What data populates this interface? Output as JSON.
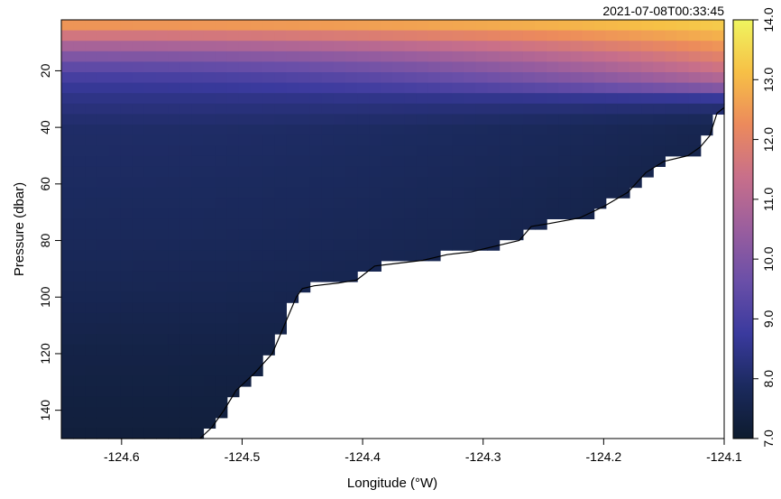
{
  "chart_data": {
    "type": "heatmap",
    "timestamp": "2021-07-08T00:33:45",
    "xlabel": "Longitude (°W)",
    "ylabel": "Pressure (dbar)",
    "xlim": [
      -124.65,
      -124.1
    ],
    "ylim": [
      150,
      2
    ],
    "xticks": [
      -124.6,
      -124.5,
      -124.4,
      -124.3,
      -124.2,
      -124.1
    ],
    "xtick_labels": [
      "-124.6",
      "-124.5",
      "-124.4",
      "-124.3",
      "-124.2",
      "-124.1"
    ],
    "yticks": [
      20,
      40,
      60,
      80,
      100,
      120,
      140
    ],
    "ytick_labels": [
      "20",
      "40",
      "60",
      "80",
      "100",
      "120",
      "140"
    ],
    "colorbar": {
      "range": [
        7.0,
        14.0
      ],
      "ticks": [
        7.0,
        8.0,
        9.0,
        10.0,
        11.0,
        12.0,
        13.0,
        14.0
      ],
      "tick_labels": [
        "7.0",
        "8.0",
        "9.0",
        "10.0",
        "11.0",
        "12.0",
        "13.0",
        "14.0"
      ],
      "colors": [
        "#0d1b2e",
        "#1b2a5e",
        "#3a3a9e",
        "#6a4fa8",
        "#9a5e9e",
        "#c86f8a",
        "#ec8a5c",
        "#f7c046",
        "#eff55f"
      ]
    },
    "bottom_profile": {
      "lon": [
        -124.535,
        -124.525,
        -124.515,
        -124.505,
        -124.49,
        -124.475,
        -124.465,
        -124.455,
        -124.45,
        -124.44,
        -124.42,
        -124.405,
        -124.39,
        -124.37,
        -124.35,
        -124.33,
        -124.31,
        -124.29,
        -124.27,
        -124.26,
        -124.245,
        -124.22,
        -124.2,
        -124.18,
        -124.165,
        -124.15,
        -124.13,
        -124.12,
        -124.112,
        -124.106,
        -124.1
      ],
      "depth": [
        150,
        146,
        140,
        133,
        127,
        120,
        110,
        100,
        97,
        96,
        95,
        94,
        89,
        88,
        87,
        85,
        84,
        82,
        80,
        75,
        74,
        72,
        68,
        63,
        56,
        52,
        50,
        47,
        43,
        35,
        33
      ]
    },
    "temperature_profiles": {
      "offshore": {
        "pressure": [
          2,
          5,
          10,
          15,
          20,
          25,
          30,
          35,
          40,
          60,
          80,
          100,
          120,
          150
        ],
        "value": [
          12.8,
          12.2,
          11.0,
          10.0,
          9.2,
          8.7,
          8.4,
          8.2,
          8.0,
          7.9,
          7.8,
          7.65,
          7.45,
          7.25
        ]
      },
      "nearshore": {
        "pressure": [
          2,
          5,
          10,
          15,
          20,
          25,
          30,
          35,
          40,
          60,
          80,
          100
        ],
        "value": [
          13.5,
          13.2,
          12.6,
          12.0,
          11.4,
          10.5,
          8.6,
          7.9,
          7.6,
          7.4,
          7.3,
          7.2
        ]
      }
    }
  }
}
